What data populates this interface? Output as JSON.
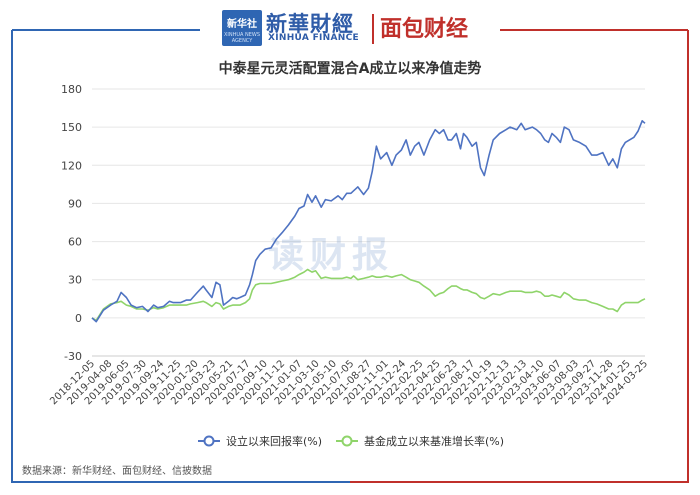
{
  "header": {
    "logo_box_text": "新华社",
    "logo_box_sub": "XINHUA NEWS AGENCY",
    "brand_cn": "新華財經",
    "brand_en": "XINHUA FINANCE",
    "partner": "面包财经"
  },
  "watermark": "读财报",
  "source_note": "数据来源：新华财经、面包财经、信披数据",
  "colors": {
    "frame_left": "#2f66b3",
    "frame_right": "#c0302b",
    "series1": "#4f73c2",
    "series2": "#8fd46a"
  },
  "chart_data": {
    "type": "line",
    "title": "中泰星元灵活配置混合A成立以来净值走势",
    "xlabel": "",
    "ylabel": "",
    "ylim": [
      -30,
      180
    ],
    "yticks": [
      -30,
      0,
      30,
      60,
      90,
      120,
      150,
      180
    ],
    "grid": true,
    "legend_position": "bottom",
    "x_start": "2018-12-05",
    "x_end": "2024-05-20",
    "x_tick_labels": [
      "2018-12-05",
      "2019-04-08",
      "2019-06-05",
      "2019-07-30",
      "2019-09-24",
      "2019-11-25",
      "2020-01-20",
      "2020-03-23",
      "2020-05-21",
      "2020-07-17",
      "2020-09-10",
      "2020-11-12",
      "2021-01-07",
      "2021-03-10",
      "2021-05-10",
      "2021-07-05",
      "2021-08-27",
      "2021-11-01",
      "2021-12-24",
      "2022-02-25",
      "2022-04-25",
      "2022-06-23",
      "2022-08-17",
      "2022-10-19",
      "2022-12-13",
      "2023-02-13",
      "2023-04-10",
      "2023-06-07",
      "2023-08-03",
      "2023-09-27",
      "2023-11-28",
      "2024-01-25",
      "2024-03-25"
    ],
    "series": [
      {
        "name": "设立以来回报率(%)",
        "points": [
          [
            "2018-12-05",
            0
          ],
          [
            "2018-12-20",
            -3
          ],
          [
            "2019-01-15",
            6
          ],
          [
            "2019-02-10",
            10
          ],
          [
            "2019-03-05",
            13
          ],
          [
            "2019-03-20",
            20
          ],
          [
            "2019-04-08",
            16
          ],
          [
            "2019-04-25",
            10
          ],
          [
            "2019-05-15",
            8
          ],
          [
            "2019-06-05",
            9
          ],
          [
            "2019-06-25",
            5
          ],
          [
            "2019-07-15",
            10
          ],
          [
            "2019-07-30",
            8
          ],
          [
            "2019-08-20",
            9
          ],
          [
            "2019-09-10",
            13
          ],
          [
            "2019-09-24",
            12
          ],
          [
            "2019-10-20",
            12
          ],
          [
            "2019-11-10",
            14
          ],
          [
            "2019-11-25",
            14
          ],
          [
            "2019-12-20",
            20
          ],
          [
            "2020-01-10",
            25
          ],
          [
            "2020-01-20",
            22
          ],
          [
            "2020-02-10",
            16
          ],
          [
            "2020-02-25",
            28
          ],
          [
            "2020-03-10",
            26
          ],
          [
            "2020-03-23",
            10
          ],
          [
            "2020-04-10",
            13
          ],
          [
            "2020-04-25",
            16
          ],
          [
            "2020-05-10",
            15
          ],
          [
            "2020-05-21",
            16
          ],
          [
            "2020-06-10",
            18
          ],
          [
            "2020-06-25",
            26
          ],
          [
            "2020-07-05",
            34
          ],
          [
            "2020-07-17",
            45
          ],
          [
            "2020-08-01",
            50
          ],
          [
            "2020-08-20",
            54
          ],
          [
            "2020-09-10",
            55
          ],
          [
            "2020-09-30",
            62
          ],
          [
            "2020-10-20",
            67
          ],
          [
            "2020-11-12",
            73
          ],
          [
            "2020-12-05",
            80
          ],
          [
            "2020-12-20",
            86
          ],
          [
            "2021-01-07",
            88
          ],
          [
            "2021-01-20",
            97
          ],
          [
            "2021-02-05",
            91
          ],
          [
            "2021-02-18",
            96
          ],
          [
            "2021-03-10",
            87
          ],
          [
            "2021-03-25",
            93
          ],
          [
            "2021-04-15",
            92
          ],
          [
            "2021-05-10",
            96
          ],
          [
            "2021-05-25",
            93
          ],
          [
            "2021-06-10",
            98
          ],
          [
            "2021-06-25",
            98
          ],
          [
            "2021-07-05",
            100
          ],
          [
            "2021-07-20",
            103
          ],
          [
            "2021-08-10",
            97
          ],
          [
            "2021-08-27",
            102
          ],
          [
            "2021-09-10",
            115
          ],
          [
            "2021-09-25",
            135
          ],
          [
            "2021-10-10",
            125
          ],
          [
            "2021-11-01",
            130
          ],
          [
            "2021-11-20",
            120
          ],
          [
            "2021-12-05",
            128
          ],
          [
            "2021-12-24",
            132
          ],
          [
            "2022-01-10",
            140
          ],
          [
            "2022-01-25",
            128
          ],
          [
            "2022-02-10",
            135
          ],
          [
            "2022-02-25",
            138
          ],
          [
            "2022-03-15",
            128
          ],
          [
            "2022-04-05",
            140
          ],
          [
            "2022-04-25",
            148
          ],
          [
            "2022-05-10",
            145
          ],
          [
            "2022-05-25",
            148
          ],
          [
            "2022-06-10",
            140
          ],
          [
            "2022-06-23",
            140
          ],
          [
            "2022-07-10",
            145
          ],
          [
            "2022-07-25",
            133
          ],
          [
            "2022-08-05",
            145
          ],
          [
            "2022-08-17",
            142
          ],
          [
            "2022-09-05",
            135
          ],
          [
            "2022-09-20",
            138
          ],
          [
            "2022-10-05",
            118
          ],
          [
            "2022-10-19",
            112
          ],
          [
            "2022-11-05",
            128
          ],
          [
            "2022-11-20",
            140
          ],
          [
            "2022-12-13",
            145
          ],
          [
            "2023-01-05",
            148
          ],
          [
            "2023-01-20",
            150
          ],
          [
            "2023-02-13",
            148
          ],
          [
            "2023-03-01",
            153
          ],
          [
            "2023-03-15",
            148
          ],
          [
            "2023-04-10",
            150
          ],
          [
            "2023-04-25",
            148
          ],
          [
            "2023-05-10",
            145
          ],
          [
            "2023-05-25",
            140
          ],
          [
            "2023-06-07",
            138
          ],
          [
            "2023-06-20",
            145
          ],
          [
            "2023-07-05",
            142
          ],
          [
            "2023-07-20",
            138
          ],
          [
            "2023-08-03",
            150
          ],
          [
            "2023-08-20",
            148
          ],
          [
            "2023-09-05",
            140
          ],
          [
            "2023-09-27",
            138
          ],
          [
            "2023-10-20",
            135
          ],
          [
            "2023-11-10",
            128
          ],
          [
            "2023-11-28",
            128
          ],
          [
            "2023-12-20",
            130
          ],
          [
            "2024-01-10",
            120
          ],
          [
            "2024-01-25",
            125
          ],
          [
            "2024-02-10",
            118
          ],
          [
            "2024-02-25",
            133
          ],
          [
            "2024-03-10",
            138
          ],
          [
            "2024-03-25",
            140
          ],
          [
            "2024-04-10",
            142
          ],
          [
            "2024-04-25",
            147
          ],
          [
            "2024-05-10",
            155
          ],
          [
            "2024-05-20",
            153
          ]
        ]
      },
      {
        "name": "基金成立以来基准增长率(%)",
        "points": [
          [
            "2018-12-05",
            0
          ],
          [
            "2018-12-20",
            -2
          ],
          [
            "2019-01-15",
            7
          ],
          [
            "2019-02-10",
            11
          ],
          [
            "2019-03-05",
            12
          ],
          [
            "2019-03-20",
            13
          ],
          [
            "2019-04-08",
            10
          ],
          [
            "2019-04-25",
            9
          ],
          [
            "2019-05-15",
            7
          ],
          [
            "2019-06-05",
            7
          ],
          [
            "2019-06-25",
            6
          ],
          [
            "2019-07-15",
            8
          ],
          [
            "2019-07-30",
            7
          ],
          [
            "2019-08-20",
            8
          ],
          [
            "2019-09-10",
            10
          ],
          [
            "2019-09-24",
            10
          ],
          [
            "2019-10-20",
            10
          ],
          [
            "2019-11-10",
            10
          ],
          [
            "2019-11-25",
            11
          ],
          [
            "2019-12-20",
            12
          ],
          [
            "2020-01-10",
            13
          ],
          [
            "2020-01-20",
            12
          ],
          [
            "2020-02-10",
            9
          ],
          [
            "2020-02-25",
            12
          ],
          [
            "2020-03-10",
            11
          ],
          [
            "2020-03-23",
            7
          ],
          [
            "2020-04-10",
            9
          ],
          [
            "2020-04-25",
            10
          ],
          [
            "2020-05-10",
            10
          ],
          [
            "2020-05-21",
            10
          ],
          [
            "2020-06-10",
            12
          ],
          [
            "2020-06-25",
            15
          ],
          [
            "2020-07-05",
            22
          ],
          [
            "2020-07-17",
            26
          ],
          [
            "2020-08-01",
            27
          ],
          [
            "2020-08-20",
            27
          ],
          [
            "2020-09-10",
            27
          ],
          [
            "2020-09-30",
            28
          ],
          [
            "2020-10-20",
            29
          ],
          [
            "2020-11-12",
            30
          ],
          [
            "2020-12-05",
            32
          ],
          [
            "2020-12-20",
            34
          ],
          [
            "2021-01-07",
            36
          ],
          [
            "2021-01-20",
            38
          ],
          [
            "2021-02-05",
            36
          ],
          [
            "2021-02-18",
            37
          ],
          [
            "2021-03-10",
            31
          ],
          [
            "2021-03-25",
            32
          ],
          [
            "2021-04-15",
            31
          ],
          [
            "2021-05-10",
            31
          ],
          [
            "2021-05-25",
            31
          ],
          [
            "2021-06-10",
            32
          ],
          [
            "2021-06-25",
            31
          ],
          [
            "2021-07-05",
            33
          ],
          [
            "2021-07-20",
            30
          ],
          [
            "2021-08-10",
            31
          ],
          [
            "2021-08-27",
            32
          ],
          [
            "2021-09-10",
            33
          ],
          [
            "2021-09-25",
            32
          ],
          [
            "2021-10-10",
            32
          ],
          [
            "2021-11-01",
            33
          ],
          [
            "2021-11-20",
            32
          ],
          [
            "2021-12-05",
            33
          ],
          [
            "2021-12-24",
            34
          ],
          [
            "2022-01-10",
            32
          ],
          [
            "2022-01-25",
            30
          ],
          [
            "2022-02-10",
            29
          ],
          [
            "2022-02-25",
            28
          ],
          [
            "2022-03-15",
            25
          ],
          [
            "2022-04-05",
            22
          ],
          [
            "2022-04-25",
            17
          ],
          [
            "2022-05-10",
            19
          ],
          [
            "2022-05-25",
            20
          ],
          [
            "2022-06-10",
            23
          ],
          [
            "2022-06-23",
            25
          ],
          [
            "2022-07-10",
            25
          ],
          [
            "2022-07-25",
            23
          ],
          [
            "2022-08-05",
            22
          ],
          [
            "2022-08-17",
            22
          ],
          [
            "2022-09-05",
            20
          ],
          [
            "2022-09-20",
            19
          ],
          [
            "2022-10-05",
            16
          ],
          [
            "2022-10-19",
            15
          ],
          [
            "2022-11-05",
            17
          ],
          [
            "2022-11-20",
            19
          ],
          [
            "2022-12-13",
            18
          ],
          [
            "2023-01-05",
            20
          ],
          [
            "2023-01-20",
            21
          ],
          [
            "2023-02-13",
            21
          ],
          [
            "2023-03-01",
            21
          ],
          [
            "2023-03-15",
            20
          ],
          [
            "2023-04-10",
            20
          ],
          [
            "2023-04-25",
            21
          ],
          [
            "2023-05-10",
            20
          ],
          [
            "2023-05-25",
            17
          ],
          [
            "2023-06-07",
            17
          ],
          [
            "2023-06-20",
            18
          ],
          [
            "2023-07-05",
            17
          ],
          [
            "2023-07-20",
            16
          ],
          [
            "2023-08-03",
            20
          ],
          [
            "2023-08-20",
            18
          ],
          [
            "2023-09-05",
            15
          ],
          [
            "2023-09-27",
            14
          ],
          [
            "2023-10-20",
            14
          ],
          [
            "2023-11-10",
            12
          ],
          [
            "2023-11-28",
            11
          ],
          [
            "2023-12-20",
            9
          ],
          [
            "2024-01-10",
            7
          ],
          [
            "2024-01-25",
            7
          ],
          [
            "2024-02-10",
            5
          ],
          [
            "2024-02-25",
            10
          ],
          [
            "2024-03-10",
            12
          ],
          [
            "2024-03-25",
            12
          ],
          [
            "2024-04-10",
            12
          ],
          [
            "2024-04-25",
            12
          ],
          [
            "2024-05-10",
            14
          ],
          [
            "2024-05-20",
            15
          ]
        ]
      }
    ]
  }
}
